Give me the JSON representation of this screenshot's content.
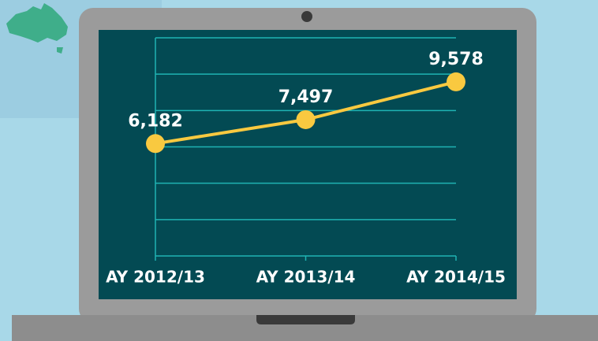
{
  "chart_data": {
    "type": "line",
    "categories": [
      "AY 2012/13",
      "AY 2013/14",
      "AY 2014/15"
    ],
    "values": [
      6182,
      7497,
      9578
    ],
    "value_labels": [
      "6,182",
      "7,497",
      "9,578"
    ],
    "color": "#f9c940",
    "ylim": [
      0,
      12000
    ],
    "yticks": [
      0,
      2000,
      4000,
      6000,
      8000,
      10000,
      12000
    ],
    "grid": true
  }
}
